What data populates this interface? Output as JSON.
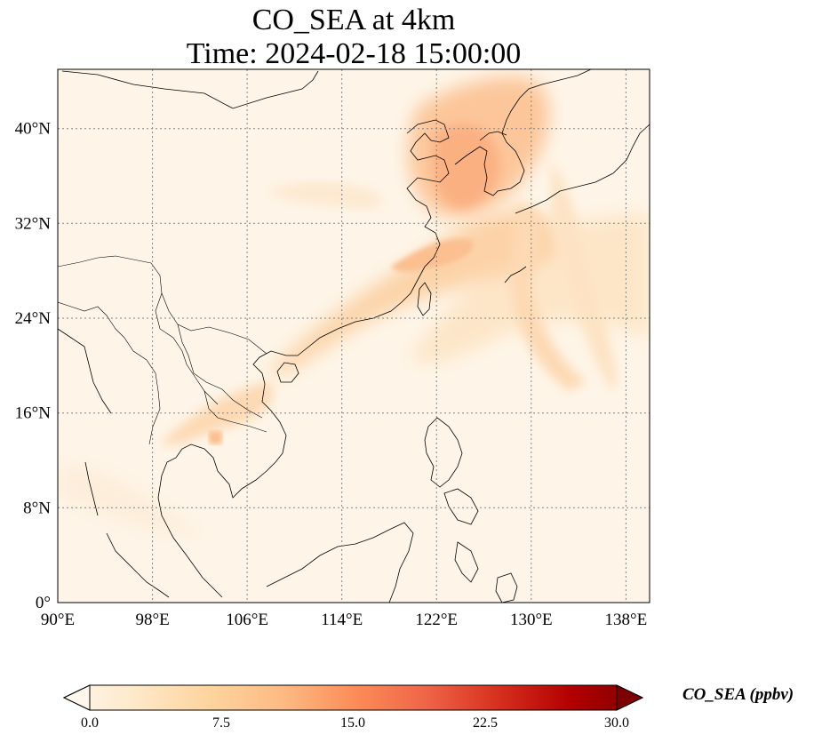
{
  "title": {
    "line1": "CO_SEA at 4km",
    "line2": "Time: 2024-02-18 15:00:00"
  },
  "map": {
    "projection": "PlateCarree",
    "lon_range": [
      90,
      140
    ],
    "lat_range": [
      0,
      45
    ],
    "gridlines": true,
    "lon_ticks": [
      "90°E",
      "98°E",
      "106°E",
      "114°E",
      "122°E",
      "130°E",
      "138°E"
    ],
    "lat_ticks": [
      "0°",
      "8°N",
      "16°N",
      "24°N",
      "32°N",
      "40°N"
    ],
    "field": "CO_SEA",
    "features": [
      "coastlines",
      "borders"
    ]
  },
  "colorbar": {
    "label": "CO_SEA (ppbv)",
    "colormap": "OrRd",
    "range": [
      0.0,
      30.0
    ],
    "extend": "both",
    "ticks": [
      "0.0",
      "7.5",
      "15.0",
      "22.5",
      "30.0"
    ],
    "colors": [
      "#fff7ec",
      "#fee8c8",
      "#fdd49e",
      "#fdbb84",
      "#fc8d59",
      "#ef6548",
      "#d7301f",
      "#b30000",
      "#7f0000"
    ]
  }
}
